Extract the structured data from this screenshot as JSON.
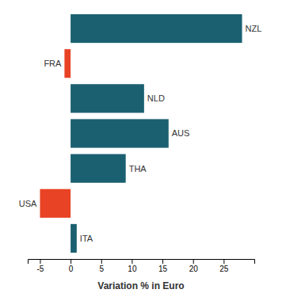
{
  "chart_data": {
    "type": "bar",
    "orientation": "horizontal",
    "categories": [
      "NZL",
      "FRA",
      "NLD",
      "AUS",
      "THA",
      "USA",
      "ITA"
    ],
    "values": [
      28,
      -1,
      12,
      16,
      9,
      -5,
      1
    ],
    "colors": [
      "#1b6070",
      "#e84325",
      "#1b6070",
      "#1b6070",
      "#1b6070",
      "#e84325",
      "#1b6070"
    ],
    "xlabel": "Variation % in Euro",
    "xlim": [
      -7,
      30
    ],
    "xticks": [
      -5,
      0,
      5,
      10,
      15,
      20,
      25
    ],
    "tick_labels": "x"
  }
}
